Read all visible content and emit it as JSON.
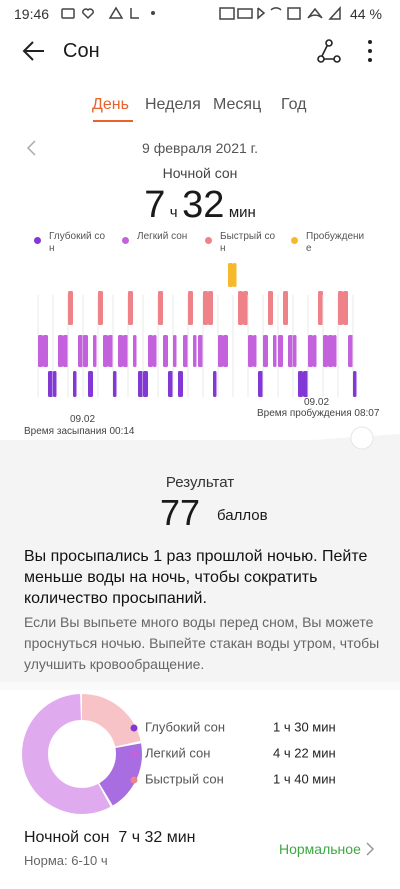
{
  "status_bar": {
    "time": "19:46",
    "battery": "44 %"
  },
  "header": {
    "title": "Сон"
  },
  "tabs": [
    "День",
    "Неделя",
    "Месяц",
    "Год"
  ],
  "active_tab": 0,
  "date": "9 февраля 2021 г.",
  "summary": {
    "label": "Ночной сон",
    "hours": "7",
    "hours_unit": "ч",
    "minutes": "32",
    "minutes_unit": "мин"
  },
  "legend": [
    {
      "label": "Глубокий сон",
      "color": "#8338d6"
    },
    {
      "label": "Легкий сон",
      "color": "#c462dd"
    },
    {
      "label": "Быстрый сон",
      "color": "#ef8189"
    },
    {
      "label": "Пробуждение",
      "color": "#f6b92b"
    }
  ],
  "axis": {
    "start_date": "09.02",
    "start_label": "Время засыпания 00:14",
    "end_date": "09.02",
    "end_label": "Время пробуждения 08:07"
  },
  "result": {
    "label": "Результат",
    "score": 77,
    "unit": "баллов"
  },
  "advice": {
    "headline": "Вы просыпались 1 раз прошлой ночью. Пейте меньше воды на ночь, чтобы сократить количество просыпаний.",
    "text": "Если Вы выпьете много воды перед сном, Вы можете проснуться ночью. Выпейте стакан воды утром, чтобы улучшить кровообращение."
  },
  "breakdown": [
    {
      "label": "Глубокий сон",
      "duration": "1 ч 30 мин",
      "color": "#a86de0"
    },
    {
      "label": "Легкий сон",
      "duration": "4 ч 22 мин",
      "color": "#e0aaee"
    },
    {
      "label": "Быстрый сон",
      "duration": "1 ч 40 мин",
      "color": "#f7c3c6"
    }
  ],
  "footer": {
    "title": "Ночной сон  7 ч 32 мин",
    "norm": "Норма: 6-10 ч",
    "status": "Нормальное"
  }
}
